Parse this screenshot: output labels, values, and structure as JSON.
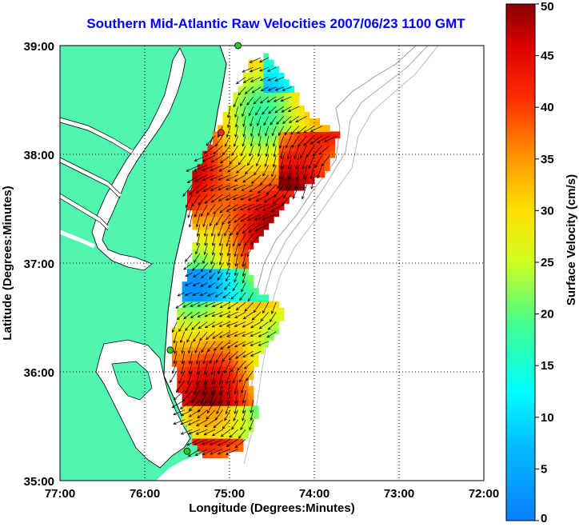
{
  "title": "Southern Mid-Atlantic Raw Velocities 2007/06/23 1100 GMT",
  "axes": {
    "xlabel": "Longitude (Degrees:Minutes)",
    "ylabel": "Latitude (Degrees:Minutes)",
    "x_ticks": [
      "77:00",
      "76:00",
      "75:00",
      "74:00",
      "73:00",
      "72:00"
    ],
    "y_ticks": [
      "39:00",
      "38:00",
      "37:00",
      "36:00",
      "35:00"
    ],
    "x_range": [
      -77,
      -72
    ],
    "y_range": [
      35,
      39
    ],
    "grid": true
  },
  "colorbar": {
    "label": "Surface Velocity (cm/s)",
    "ticks": [
      "50",
      "45",
      "40",
      "35",
      "30",
      "25",
      "20",
      "15",
      "10",
      "5",
      "0"
    ],
    "range": [
      0,
      50
    ],
    "colormap": "jet"
  },
  "colors": {
    "land": "#50f5b0",
    "water": "#ffffff",
    "title": "#0000ff",
    "bathymetry": "#999999",
    "vectors": "#000000",
    "site_marker": "#22cc22",
    "site_marker_active": "#ff2222"
  },
  "sites": [
    {
      "lon": -74.9,
      "lat": 39.0,
      "status": "ok"
    },
    {
      "lon": -75.1,
      "lat": 38.2,
      "status": "alert"
    },
    {
      "lon": -75.7,
      "lat": 36.2,
      "status": "ok"
    },
    {
      "lon": -75.5,
      "lat": 35.27,
      "status": "ok"
    }
  ]
}
